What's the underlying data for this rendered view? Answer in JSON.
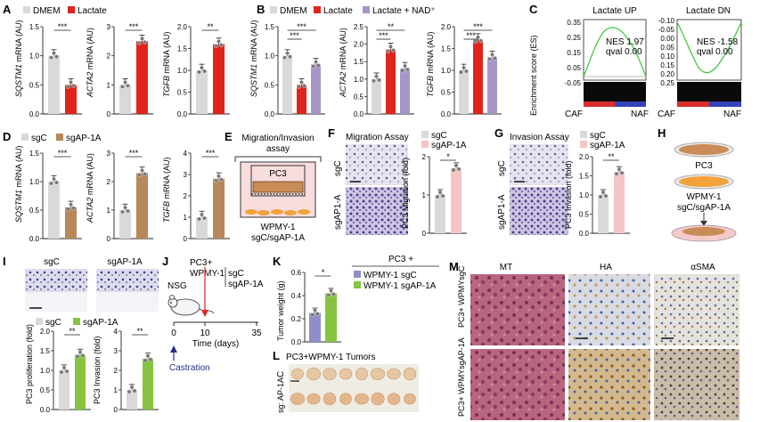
{
  "panel_letters": [
    "A",
    "B",
    "C",
    "D",
    "E",
    "F",
    "G",
    "H",
    "I",
    "J",
    "K",
    "L",
    "M"
  ],
  "colors": {
    "gray": "#d9d9d9",
    "red": "#e0241c",
    "purple": "#a895c8",
    "tan": "#b8875a",
    "pink": "#f5c4c4",
    "green": "#86c440",
    "lav": "#8e8ec8",
    "text": "#111111",
    "navy": "#2a2f8a"
  },
  "A": {
    "legend": [
      "DMEM",
      "Lactate"
    ],
    "charts": [
      {
        "ylabel_gene": "SQSTM1",
        "ylabel_rest": " mRNA (AU)",
        "ticks": [
          "0.0",
          "0.5",
          "1.0",
          "1.5"
        ],
        "ymax": 1.5,
        "values": [
          1.0,
          0.5
        ],
        "sig": [
          "***"
        ]
      },
      {
        "ylabel_gene": "ACTA2",
        "ylabel_rest": " mRNA (AU)",
        "ticks": [
          "0",
          "1",
          "2",
          "3"
        ],
        "ymax": 3,
        "values": [
          1.0,
          2.5
        ],
        "sig": [
          "***"
        ]
      },
      {
        "ylabel_gene": "TGFB",
        "ylabel_rest": " mRNA (AU)",
        "ticks": [
          "0.0",
          "0.5",
          "1.0",
          "1.5",
          "2.0"
        ],
        "ymax": 2.0,
        "values": [
          1.0,
          1.6
        ],
        "sig": [
          "**"
        ]
      }
    ]
  },
  "B": {
    "legend": [
      "DMEM",
      "Lactate",
      "Lactate + NAD⁺"
    ],
    "charts": [
      {
        "ylabel_gene": "SQSTM1",
        "ylabel_rest": " mRNA (AU)",
        "ticks": [
          "0.0",
          "0.5",
          "1.0",
          "1.5"
        ],
        "ymax": 1.5,
        "values": [
          1.0,
          0.5,
          0.85
        ],
        "sig": [
          "***",
          "***"
        ]
      },
      {
        "ylabel_gene": "ACTA2",
        "ylabel_rest": " mRNA (AU)",
        "ticks": [
          "0.0",
          "0.5",
          "1.0",
          "1.5",
          "2.0",
          "2.5"
        ],
        "ymax": 2.5,
        "values": [
          1.0,
          1.85,
          1.3
        ],
        "sig": [
          "***",
          "**"
        ]
      },
      {
        "ylabel_gene": "TGFB",
        "ylabel_rest": " mRNA (AU)",
        "ticks": [
          "0.0",
          "0.5",
          "1.0",
          "1.5",
          "2.0"
        ],
        "ymax": 2.0,
        "values": [
          1.0,
          1.7,
          1.3
        ],
        "sig": [
          "***",
          "***"
        ]
      }
    ]
  },
  "C": {
    "ylabel": "Enrichment score (ES)",
    "plots": [
      {
        "title": "Lactate UP",
        "nes": "NES 1.97",
        "qval": "qval 0.00",
        "ticks": [
          "0.35",
          "0.25",
          "0.15",
          "0.05",
          "-0.05"
        ],
        "left": "CAF",
        "right": "NAF"
      },
      {
        "title": "Lactate DN",
        "nes": "NES -1.58",
        "qval": "qval 0.00",
        "ticks": [
          "-0.10",
          "-0.05",
          "0.00",
          "0.05",
          "0.10",
          "0.15",
          "0.20",
          "0.25"
        ],
        "left": "CAF",
        "right": "NAF"
      }
    ]
  },
  "D": {
    "legend": [
      "sgC",
      "sgAP-1A"
    ],
    "charts": [
      {
        "ylabel_gene": "SQSTM1",
        "ylabel_rest": " mRNA (AU)",
        "ticks": [
          "0.0",
          "0.5",
          "1.0",
          "1.5"
        ],
        "ymax": 1.5,
        "values": [
          1.0,
          0.55
        ],
        "sig": [
          "***"
        ]
      },
      {
        "ylabel_gene": "ACTA2",
        "ylabel_rest": " mRNA (AU)",
        "ticks": [
          "0",
          "1",
          "2",
          "3"
        ],
        "ymax": 3,
        "values": [
          1.0,
          2.3
        ],
        "sig": [
          "***"
        ]
      },
      {
        "ylabel_gene": "TGFB",
        "ylabel_rest": " mRNA (AU)",
        "ticks": [
          "0",
          "1",
          "2",
          "3",
          "4"
        ],
        "ymax": 4,
        "values": [
          1.0,
          2.8
        ],
        "sig": [
          "***"
        ]
      }
    ]
  },
  "E": {
    "title1": "Migration/Invasion",
    "title2": "assay",
    "cell": "PC3",
    "bottom1": "WPMY-1",
    "bottom2": "sgC/sgAP-1A"
  },
  "F": {
    "title": "Migration Assay",
    "legend": [
      "sgC",
      "sgAP-1A"
    ],
    "row_labels": [
      "sgC",
      "sgAP1-A"
    ],
    "ylabel": "PC3 Migration (fold)",
    "ticks": [
      "0",
      "1",
      "2"
    ],
    "ymax": 2,
    "values": [
      1.0,
      1.7
    ],
    "sig": "*"
  },
  "G": {
    "title": "Invasion Assay",
    "legend": [
      "sgC",
      "sgAP-1A"
    ],
    "row_labels": [
      "sgC",
      "sgAP1-A"
    ],
    "ylabel": "PC3 Invasion (fold)",
    "ticks": [
      "0.0",
      "0.5",
      "1.0",
      "1.5",
      "2.0"
    ],
    "ymax": 2,
    "values": [
      1.0,
      1.6
    ],
    "sig": "**"
  },
  "H": {
    "top": "PC3",
    "mid1": "WPMY-1",
    "mid2": "sgC/sgAP-1A"
  },
  "I": {
    "col_labels": [
      "sgC",
      "sgAP-1A"
    ],
    "legend": [
      "sgC",
      "sgAP-1A"
    ],
    "charts": [
      {
        "ylabel": "PC3 proliferation (fold)",
        "ticks": [
          "0.0",
          "0.5",
          "1.0",
          "1.5",
          "2.0"
        ],
        "ymax": 2,
        "values": [
          1.0,
          1.4
        ],
        "sig": "**"
      },
      {
        "ylabel": "PC3 Invasion (fold)",
        "ticks": [
          "0",
          "1",
          "2",
          "3",
          "4"
        ],
        "ymax": 4,
        "values": [
          1.0,
          2.6
        ],
        "sig": "**"
      }
    ]
  },
  "J": {
    "line1": "PC3+",
    "line2": "WPMY-1",
    "sg1": "sgC",
    "sg2": "sgAP-1A",
    "mouse": "NSG",
    "xticks": [
      "0",
      "10",
      "35"
    ],
    "xlabel": "Time (days)",
    "castration": "Castration"
  },
  "K": {
    "header": "PC3 +",
    "ylabel": "Tumor weight (g)",
    "ticks": [
      "0.0",
      "0.2",
      "0.4",
      "0.6"
    ],
    "ymax": 0.6,
    "values": [
      0.25,
      0.42
    ],
    "sig": "*",
    "legend": [
      "WPMY-1 sgC",
      "WPMY-1 sgAP-1A"
    ]
  },
  "L": {
    "title": "PC3+WPMY-1 Tumors",
    "row_c": "C",
    "row_sg": "sg: AP-1A"
  },
  "M": {
    "cols": [
      "MT",
      "HA",
      "αSMA"
    ],
    "rows": [
      "PC3+ WPMYsgC",
      "PC3+ WPMYsgAP-1A"
    ]
  }
}
